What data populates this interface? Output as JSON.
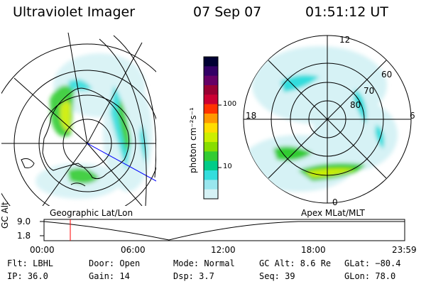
{
  "header": {
    "instrument": "Ultraviolet Imager",
    "date": "07 Sep 07",
    "time": "01:51:12 UT"
  },
  "left_panel": {
    "caption": "Geographic Lat/Lon"
  },
  "right_panel": {
    "caption": "Apex MLat/MLT",
    "mlt_labels": [
      "12",
      "18",
      "6",
      "0"
    ],
    "lat_labels": [
      "60",
      "70",
      "80"
    ]
  },
  "colorbar": {
    "unit_label": "photon cm⁻²s⁻¹",
    "ticks": [
      "100",
      "10"
    ],
    "colors": [
      "#000033",
      "#330066",
      "#660066",
      "#990033",
      "#cc0033",
      "#ff3300",
      "#ff9900",
      "#ffdd00",
      "#ccee00",
      "#88dd00",
      "#33cc33",
      "#00cc88",
      "#33dddd",
      "#99e6ee",
      "#d6f2f5"
    ]
  },
  "altitude_plot": {
    "ylabel": "GC Alt",
    "y_ticks": [
      "9.0",
      "1.8"
    ],
    "x_ticks": [
      "00:00",
      "06:00",
      "12:00",
      "18:00",
      "23:59"
    ]
  },
  "footer": {
    "filter": "Flt: LBHL",
    "ip": "IP: 36.0",
    "door": "Door: Open",
    "gain": "Gain: 14",
    "mode": "Mode: Normal",
    "dsp": "Dsp:     3.7",
    "gc_alt": "GC Alt: 8.6 Re",
    "seq": "Seq: 39",
    "glat": "GLat: −80.4",
    "glon": "GLon:  78.0"
  }
}
